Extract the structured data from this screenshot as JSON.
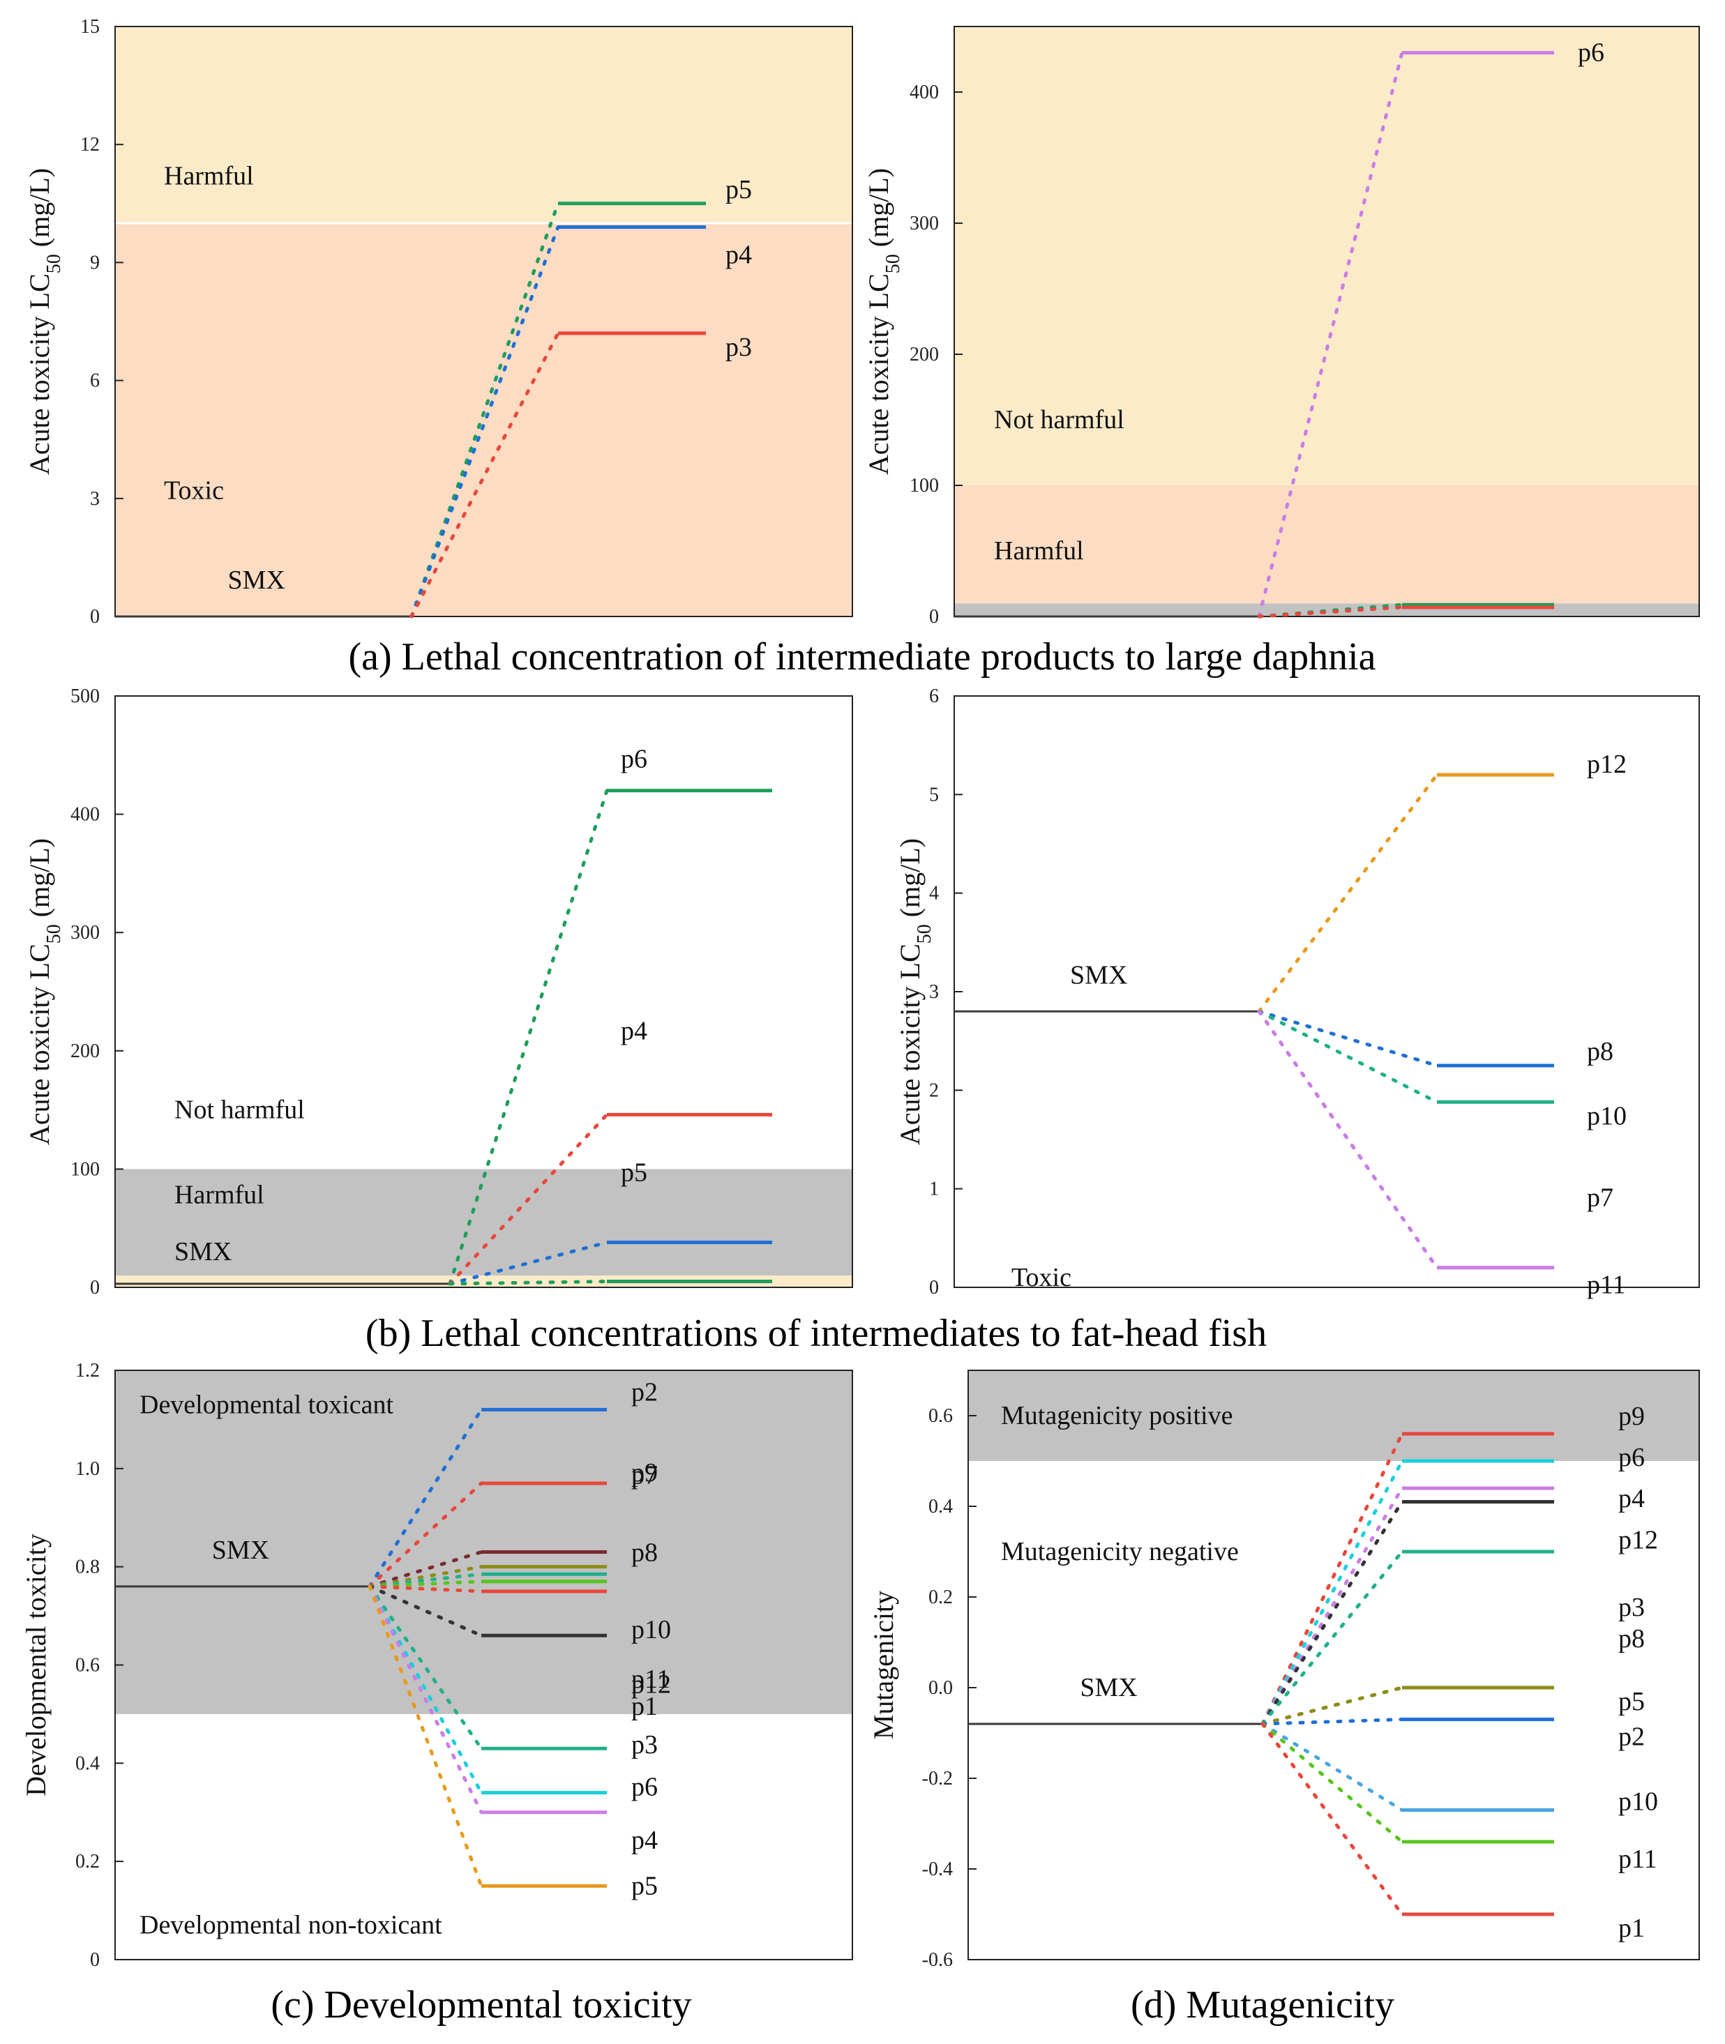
{
  "figure": {
    "captions": {
      "a": "(a) Lethal concentration of intermediate products to large daphnia",
      "b": "(b) Lethal concentrations of intermediates to fat-head fish",
      "c": "(c) Developmental toxicity",
      "d": "(d) Mutagenicity"
    }
  },
  "colors": {
    "harmful_zone": "#fcebc9",
    "toxic_zone": "#fcdcc2",
    "grey_zone": "#c2c2c2",
    "smx_line": "#3a3a3a",
    "green": "#1e9e5a",
    "blue": "#1f6fd6",
    "red": "#e8473c",
    "purple": "#c97ee6",
    "olive": "#8c8c1a",
    "orange": "#e89a1a",
    "cyan": "#18d0dc",
    "darkred": "#7a2a30",
    "black": "#333333",
    "teal": "#20b08a",
    "skyblue": "#4aa6e0",
    "lime": "#58c41e"
  },
  "chart_data": [
    {
      "id": "a1",
      "type": "line",
      "xlabel": "",
      "ylabel_prefix": "Acute toxicity LC",
      "ylabel_sub": "50",
      "ylabel_suffix": " (mg/L)",
      "ylim": [
        0,
        15
      ],
      "yticks": [
        "0",
        "3",
        "6",
        "9",
        "12",
        "15"
      ],
      "zones": [
        {
          "from": 0,
          "to": 10,
          "color": "toxic_zone"
        },
        {
          "from": 10,
          "to": 15,
          "color": "harmful_zone"
        }
      ],
      "zone_labels": [
        {
          "text": "Harmful",
          "y": 11.2
        },
        {
          "text": "Toxic",
          "y": 3.2
        }
      ],
      "smx": {
        "label": "SMX",
        "value": 0
      },
      "series": [
        {
          "name": "p5",
          "value": 10.5,
          "color": "green"
        },
        {
          "name": "p4",
          "value": 9.9,
          "color": "blue"
        },
        {
          "name": "p3",
          "value": 7.2,
          "color": "red"
        }
      ]
    },
    {
      "id": "a2",
      "type": "line",
      "xlabel": "",
      "ylabel_prefix": "Acute toxicity LC",
      "ylabel_sub": "50",
      "ylabel_suffix": " (mg/L)",
      "ylim": [
        0,
        450
      ],
      "yticks": [
        "0",
        "100",
        "200",
        "300",
        "400"
      ],
      "zones": [
        {
          "from": 0,
          "to": 10,
          "color": "grey_zone"
        },
        {
          "from": 10,
          "to": 100,
          "color": "toxic_zone"
        },
        {
          "from": 100,
          "to": 450,
          "color": "harmful_zone"
        }
      ],
      "zone_labels": [
        {
          "text": "Not harmful",
          "y": 150
        },
        {
          "text": "Harmful",
          "y": 50
        }
      ],
      "smx": {
        "label": "",
        "value": 0
      },
      "series": [
        {
          "name": "p6",
          "value": 430,
          "color": "purple"
        },
        {
          "name": "",
          "value": 9,
          "color": "green"
        },
        {
          "name": "",
          "value": 7,
          "color": "red"
        }
      ]
    },
    {
      "id": "b1",
      "type": "line",
      "xlabel": "",
      "ylabel_prefix": "Acute toxicity LC",
      "ylabel_sub": "50",
      "ylabel_suffix": " (mg/L)",
      "ylim": [
        0,
        500
      ],
      "yticks": [
        "0",
        "100",
        "200",
        "300",
        "400",
        "500"
      ],
      "zones": [
        {
          "from": 0,
          "to": 10,
          "color": "harmful_zone"
        },
        {
          "from": 10,
          "to": 100,
          "color": "grey_zone"
        }
      ],
      "zone_labels": [
        {
          "text": "Not harmful",
          "y": 150
        },
        {
          "text": "Harmful",
          "y": 78
        },
        {
          "text": "SMX",
          "y": 30
        }
      ],
      "smx": {
        "label": "",
        "value": 3
      },
      "series": [
        {
          "name": "p6",
          "value": 420,
          "color": "green"
        },
        {
          "name": "p4",
          "value": 146,
          "color": "red"
        },
        {
          "name": "p5",
          "value": 38,
          "color": "blue"
        },
        {
          "name": "",
          "value": 5,
          "color": "green"
        }
      ]
    },
    {
      "id": "b2",
      "type": "line",
      "xlabel": "",
      "ylabel_prefix": "Acute toxicity LC",
      "ylabel_sub": "50",
      "ylabel_suffix": " (mg/L)",
      "ylim": [
        0,
        6
      ],
      "yticks": [
        "0",
        "1",
        "2",
        "3",
        "4",
        "5",
        "6"
      ],
      "zones": [],
      "zone_labels": [
        {
          "text": "Toxic",
          "y": 0.1
        }
      ],
      "smx": {
        "label": "SMX",
        "value": 2.8
      },
      "series": [
        {
          "name": "p12",
          "value": 5.2,
          "color": "orange"
        },
        {
          "name": "p8",
          "value": 2.25,
          "color": "blue"
        },
        {
          "name": "p10",
          "value": 1.88,
          "color": "teal"
        },
        {
          "name": "p7",
          "value": 0.2,
          "color": "purple"
        },
        {
          "name": "p11",
          "value": 0.2,
          "color": "purple"
        }
      ]
    },
    {
      "id": "c",
      "type": "line",
      "xlabel": "",
      "ylabel_prefix": "Developmental toxicity",
      "ylabel_sub": "",
      "ylabel_suffix": "",
      "ylim": [
        0,
        1.2
      ],
      "yticks": [
        "0",
        "0.2",
        "0.4",
        "0.6",
        "0.8",
        "1.0",
        "1.2"
      ],
      "zones": [
        {
          "from": 0.5,
          "to": 1.2,
          "color": "grey_zone"
        }
      ],
      "zone_labels": [
        {
          "text": "Developmental toxicant",
          "y": 1.13
        },
        {
          "text": "Developmental non-toxicant",
          "y": 0.07
        }
      ],
      "smx": {
        "label": "SMX",
        "value": 0.76
      },
      "series": [
        {
          "name": "p2",
          "value": 1.12,
          "color": "blue"
        },
        {
          "name": "p9",
          "value": 0.97,
          "color": "red"
        },
        {
          "name": "p7",
          "value": 0.83,
          "color": "darkred"
        },
        {
          "name": "p8",
          "value": 0.8,
          "color": "olive"
        },
        {
          "name": "p10",
          "value": 0.785,
          "color": "teal"
        },
        {
          "name": "p11",
          "value": 0.77,
          "color": "lime"
        },
        {
          "name": "p1",
          "value": 0.75,
          "color": "red"
        },
        {
          "name": "p12",
          "value": 0.66,
          "color": "black"
        },
        {
          "name": "p3",
          "value": 0.43,
          "color": "teal"
        },
        {
          "name": "p6",
          "value": 0.34,
          "color": "cyan"
        },
        {
          "name": "p4",
          "value": 0.3,
          "color": "purple"
        },
        {
          "name": "p5",
          "value": 0.15,
          "color": "orange"
        }
      ]
    },
    {
      "id": "d",
      "type": "line",
      "xlabel": "",
      "ylabel_prefix": "Mutagenicity",
      "ylabel_sub": "",
      "ylabel_suffix": "",
      "ylim": [
        -0.6,
        0.7
      ],
      "yticks": [
        "-0.6",
        "-0.4",
        "-0.2",
        "0.0",
        "0.2",
        "0.4",
        "0.6"
      ],
      "zones": [
        {
          "from": 0.5,
          "to": 0.7,
          "color": "grey_zone"
        }
      ],
      "zone_labels": [
        {
          "text": "Mutagenicity positive",
          "y": 0.6
        },
        {
          "text": "Mutagenicity negative",
          "y": 0.3
        }
      ],
      "smx": {
        "label": "SMX",
        "value": -0.08
      },
      "series": [
        {
          "name": "p9",
          "value": 0.56,
          "color": "red"
        },
        {
          "name": "p6",
          "value": 0.5,
          "color": "cyan"
        },
        {
          "name": "p4",
          "value": 0.44,
          "color": "purple"
        },
        {
          "name": "p12",
          "value": 0.41,
          "color": "black"
        },
        {
          "name": "p3",
          "value": 0.3,
          "color": "teal"
        },
        {
          "name": "p8",
          "value": 0.0,
          "color": "olive"
        },
        {
          "name": "p5",
          "value": 0.0,
          "color": "olive"
        },
        {
          "name": "p2",
          "value": -0.07,
          "color": "blue"
        },
        {
          "name": "p10",
          "value": -0.27,
          "color": "skyblue"
        },
        {
          "name": "p11",
          "value": -0.34,
          "color": "lime"
        },
        {
          "name": "p1",
          "value": -0.5,
          "color": "red"
        }
      ]
    }
  ]
}
